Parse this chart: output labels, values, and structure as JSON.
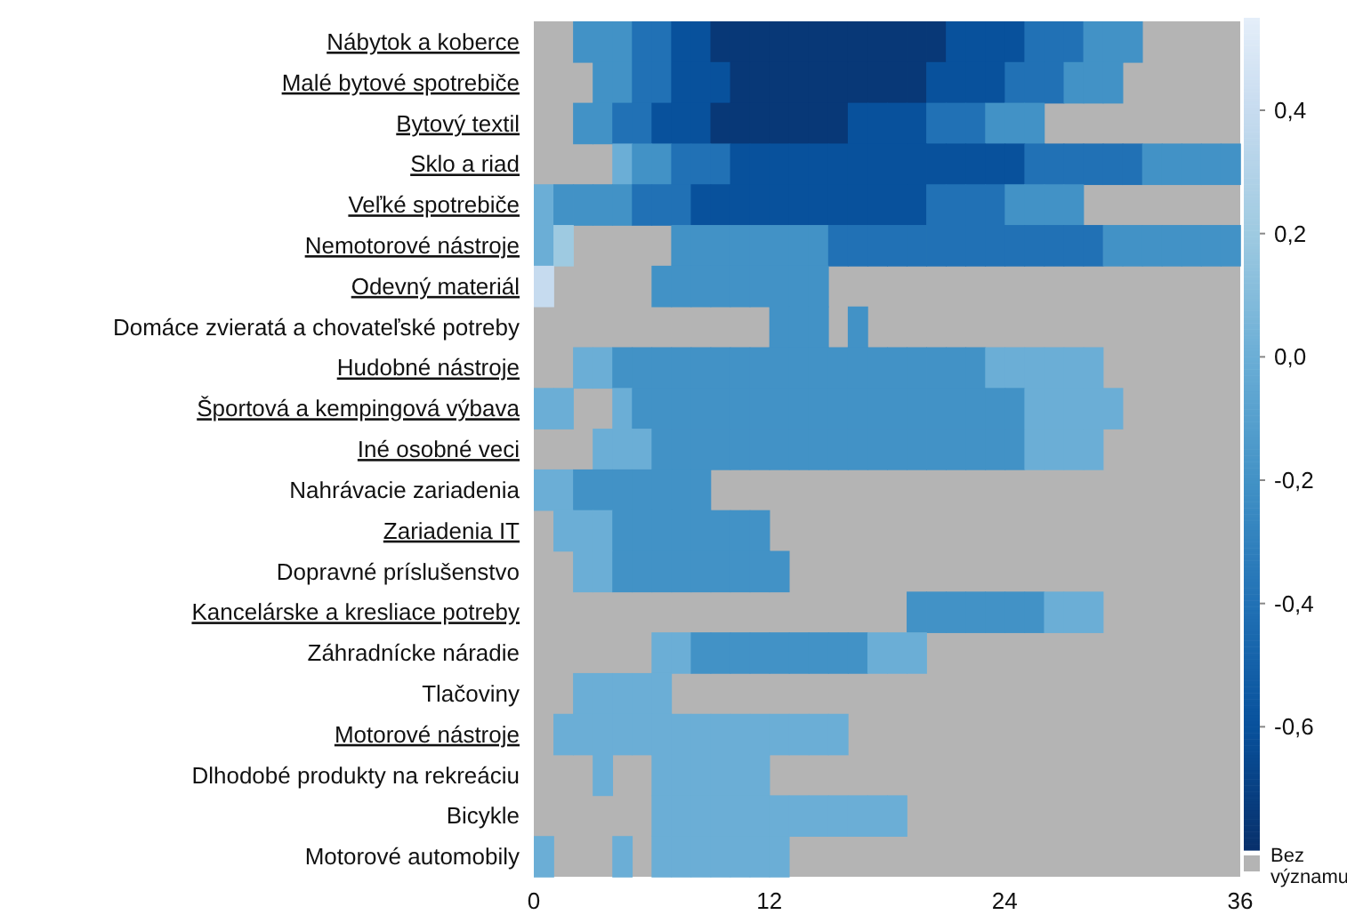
{
  "chart_data": {
    "type": "heatmap",
    "x": [
      0.5,
      1.5,
      2.5,
      3.5,
      4.5,
      5.5,
      6.5,
      7.5,
      8.5,
      9.5,
      10.5,
      11.5,
      12.5,
      13.5,
      14.5,
      15.5,
      16.5,
      17.5,
      18.5,
      19.5,
      20.5,
      21.5,
      22.5,
      23.5,
      24.5,
      25.5,
      26.5,
      27.5,
      28.5,
      29.5,
      30.5,
      31.5,
      32.5,
      33.5,
      34.5,
      35.5
    ],
    "xlim": [
      0,
      36
    ],
    "xticks": [
      0,
      12,
      24,
      36
    ],
    "y_categories": [
      "Nábytok a koberce",
      "Malé bytové spotrebiče",
      "Bytový textil",
      "Sklo a riad",
      "Veľké spotrebiče",
      "Nemotorové nástroje",
      "Odevný materiál",
      "Domáce zvieratá a chovateľské potreby",
      "Hudobné nástroje",
      "Športová a kempingová výbava",
      "Iné osobné veci",
      "Nahrávacie zariadenia",
      "Zariadenia IT",
      "Dopravné príslušenstvo",
      "Kancelárske a kresliace potreby",
      "Záhradnícke náradie",
      "Tlačoviny",
      "Motorové nástroje",
      "Dlhodobé produkty na rekreáciu",
      "Bicykle",
      "Motorové automobily"
    ],
    "cells": [
      [
        null,
        null,
        -0.2,
        -0.2,
        -0.2,
        -0.4,
        -0.4,
        -0.6,
        -0.6,
        -0.75,
        -0.75,
        -0.75,
        -0.75,
        -0.75,
        -0.75,
        -0.75,
        -0.75,
        -0.75,
        -0.75,
        -0.75,
        -0.75,
        -0.6,
        -0.6,
        -0.6,
        -0.6,
        -0.4,
        -0.4,
        -0.4,
        -0.2,
        -0.2,
        -0.2,
        null,
        null,
        null,
        null,
        null
      ],
      [
        null,
        null,
        null,
        -0.2,
        -0.2,
        -0.4,
        -0.4,
        -0.6,
        -0.6,
        -0.6,
        -0.75,
        -0.75,
        -0.75,
        -0.75,
        -0.75,
        -0.75,
        -0.75,
        -0.75,
        -0.75,
        -0.75,
        -0.6,
        -0.6,
        -0.6,
        -0.6,
        -0.4,
        -0.4,
        -0.4,
        -0.2,
        -0.2,
        -0.2,
        null,
        null,
        null,
        null,
        null,
        null
      ],
      [
        null,
        null,
        -0.2,
        -0.2,
        -0.4,
        -0.4,
        -0.6,
        -0.6,
        -0.6,
        -0.75,
        -0.75,
        -0.75,
        -0.75,
        -0.75,
        -0.75,
        -0.75,
        -0.6,
        -0.6,
        -0.6,
        -0.6,
        -0.4,
        -0.4,
        -0.4,
        -0.2,
        -0.2,
        -0.2,
        null,
        null,
        null,
        null,
        null,
        null,
        null,
        null,
        null,
        null
      ],
      [
        null,
        null,
        null,
        null,
        0,
        -0.2,
        -0.2,
        -0.4,
        -0.4,
        -0.4,
        -0.6,
        -0.6,
        -0.6,
        -0.6,
        -0.6,
        -0.6,
        -0.6,
        -0.6,
        -0.6,
        -0.6,
        -0.6,
        -0.6,
        -0.6,
        -0.6,
        -0.6,
        -0.4,
        -0.4,
        -0.4,
        -0.4,
        -0.4,
        -0.4,
        -0.2,
        -0.2,
        -0.2,
        -0.2,
        -0.2
      ],
      [
        0,
        -0.2,
        -0.2,
        -0.2,
        -0.2,
        -0.4,
        -0.4,
        -0.4,
        -0.6,
        -0.6,
        -0.6,
        -0.6,
        -0.6,
        -0.6,
        -0.6,
        -0.6,
        -0.6,
        -0.6,
        -0.6,
        -0.6,
        -0.4,
        -0.4,
        -0.4,
        -0.4,
        -0.2,
        -0.2,
        -0.2,
        -0.2,
        null,
        null,
        null,
        null,
        null,
        null,
        null,
        null
      ],
      [
        0,
        0.2,
        null,
        null,
        null,
        null,
        null,
        -0.2,
        -0.2,
        -0.2,
        -0.2,
        -0.2,
        -0.2,
        -0.2,
        -0.2,
        -0.4,
        -0.4,
        -0.4,
        -0.4,
        -0.4,
        -0.4,
        -0.4,
        -0.4,
        -0.4,
        -0.4,
        -0.4,
        -0.4,
        -0.4,
        -0.4,
        -0.2,
        -0.2,
        -0.2,
        -0.2,
        -0.2,
        -0.2,
        -0.2
      ],
      [
        0.4,
        null,
        null,
        null,
        null,
        null,
        -0.2,
        -0.2,
        -0.2,
        -0.2,
        -0.2,
        -0.2,
        -0.2,
        -0.2,
        -0.2,
        null,
        null,
        null,
        null,
        null,
        null,
        null,
        null,
        null,
        null,
        null,
        null,
        null,
        null,
        null,
        null,
        null,
        null,
        null,
        null,
        null
      ],
      [
        null,
        null,
        null,
        null,
        null,
        null,
        null,
        null,
        null,
        null,
        null,
        null,
        -0.2,
        -0.2,
        -0.2,
        null,
        -0.2,
        null,
        null,
        null,
        null,
        null,
        null,
        null,
        null,
        null,
        null,
        null,
        null,
        null,
        null,
        null,
        null,
        null,
        null,
        null
      ],
      [
        null,
        null,
        0,
        0,
        -0.2,
        -0.2,
        -0.2,
        -0.2,
        -0.2,
        -0.2,
        -0.2,
        -0.2,
        -0.2,
        -0.2,
        -0.2,
        -0.2,
        -0.2,
        -0.2,
        -0.2,
        -0.2,
        -0.2,
        -0.2,
        -0.2,
        0,
        0,
        0,
        0,
        0,
        0,
        null,
        null,
        null,
        null,
        null,
        null,
        null
      ],
      [
        0,
        0,
        null,
        null,
        0,
        -0.2,
        -0.2,
        -0.2,
        -0.2,
        -0.2,
        -0.2,
        -0.2,
        -0.2,
        -0.2,
        -0.2,
        -0.2,
        -0.2,
        -0.2,
        -0.2,
        -0.2,
        -0.2,
        -0.2,
        -0.2,
        -0.2,
        -0.2,
        0,
        0,
        0,
        0,
        0,
        null,
        null,
        null,
        null,
        null,
        null
      ],
      [
        null,
        null,
        null,
        0,
        0,
        0,
        -0.2,
        -0.2,
        -0.2,
        -0.2,
        -0.2,
        -0.2,
        -0.2,
        -0.2,
        -0.2,
        -0.2,
        -0.2,
        -0.2,
        -0.2,
        -0.2,
        -0.2,
        -0.2,
        -0.2,
        -0.2,
        -0.2,
        0,
        0,
        0,
        0,
        null,
        null,
        null,
        null,
        null,
        null,
        null
      ],
      [
        0,
        0,
        -0.2,
        -0.2,
        -0.2,
        -0.2,
        -0.2,
        -0.2,
        -0.2,
        null,
        null,
        null,
        null,
        null,
        null,
        null,
        null,
        null,
        null,
        null,
        null,
        null,
        null,
        null,
        null,
        null,
        null,
        null,
        null,
        null,
        null,
        null,
        null,
        null,
        null,
        null
      ],
      [
        null,
        0,
        0,
        0,
        -0.2,
        -0.2,
        -0.2,
        -0.2,
        -0.2,
        -0.2,
        -0.2,
        -0.2,
        null,
        null,
        null,
        null,
        null,
        null,
        null,
        null,
        null,
        null,
        null,
        null,
        null,
        null,
        null,
        null,
        null,
        null,
        null,
        null,
        null,
        null,
        null,
        null
      ],
      [
        null,
        null,
        0,
        0,
        -0.2,
        -0.2,
        -0.2,
        -0.2,
        -0.2,
        -0.2,
        -0.2,
        -0.2,
        -0.2,
        null,
        null,
        null,
        null,
        null,
        null,
        null,
        null,
        null,
        null,
        null,
        null,
        null,
        null,
        null,
        null,
        null,
        null,
        null,
        null,
        null,
        null,
        null
      ],
      [
        null,
        null,
        null,
        null,
        null,
        null,
        null,
        null,
        null,
        null,
        null,
        null,
        null,
        null,
        null,
        null,
        null,
        null,
        null,
        -0.2,
        -0.2,
        -0.2,
        -0.2,
        -0.2,
        -0.2,
        -0.2,
        0,
        0,
        0,
        null,
        null,
        null,
        null,
        null,
        null,
        null
      ],
      [
        null,
        null,
        null,
        null,
        null,
        null,
        0,
        0,
        -0.2,
        -0.2,
        -0.2,
        -0.2,
        -0.2,
        -0.2,
        -0.2,
        -0.2,
        -0.2,
        0,
        0,
        0,
        null,
        null,
        null,
        null,
        null,
        null,
        null,
        null,
        null,
        null,
        null,
        null,
        null,
        null,
        null,
        null
      ],
      [
        null,
        null,
        0,
        0,
        0,
        0,
        0,
        null,
        null,
        null,
        null,
        null,
        null,
        null,
        null,
        null,
        null,
        null,
        null,
        null,
        null,
        null,
        null,
        null,
        null,
        null,
        null,
        null,
        null,
        null,
        null,
        null,
        null,
        null,
        null,
        null
      ],
      [
        null,
        0,
        0,
        0,
        0,
        0,
        0,
        0,
        0,
        0,
        0,
        0,
        0,
        0,
        0,
        0,
        null,
        null,
        null,
        null,
        null,
        null,
        null,
        null,
        null,
        null,
        null,
        null,
        null,
        null,
        null,
        null,
        null,
        null,
        null,
        null
      ],
      [
        null,
        null,
        null,
        0,
        null,
        null,
        0,
        0,
        0,
        0,
        0,
        0,
        null,
        null,
        null,
        null,
        null,
        null,
        null,
        null,
        null,
        null,
        null,
        null,
        null,
        null,
        null,
        null,
        null,
        null,
        null,
        null,
        null,
        null,
        null,
        null
      ],
      [
        null,
        null,
        null,
        null,
        null,
        null,
        0,
        0,
        0,
        0,
        0,
        0,
        0,
        0,
        0,
        0,
        0,
        0,
        0,
        null,
        null,
        null,
        null,
        null,
        null,
        null,
        null,
        null,
        null,
        null,
        null,
        null,
        null,
        null,
        null,
        null
      ],
      [
        0,
        null,
        null,
        null,
        0,
        null,
        0,
        0,
        0,
        0,
        0,
        0,
        0,
        null,
        null,
        null,
        null,
        null,
        null,
        null,
        null,
        null,
        null,
        null,
        null,
        null,
        null,
        null,
        null,
        null,
        null,
        null,
        null,
        null,
        null,
        null
      ]
    ],
    "clim": [
      -0.8,
      0.55
    ],
    "cticks": [
      {
        "value": 0.4,
        "label": "0,4"
      },
      {
        "value": 0.2,
        "label": "0,2"
      },
      {
        "value": 0,
        "label": "0,0"
      },
      {
        "value": -0.2,
        "label": "-0,2"
      },
      {
        "value": -0.4,
        "label": "-0,4"
      },
      {
        "value": -0.6,
        "label": "-0,6"
      }
    ],
    "annotations": [
      "Bez významu"
    ]
  }
}
